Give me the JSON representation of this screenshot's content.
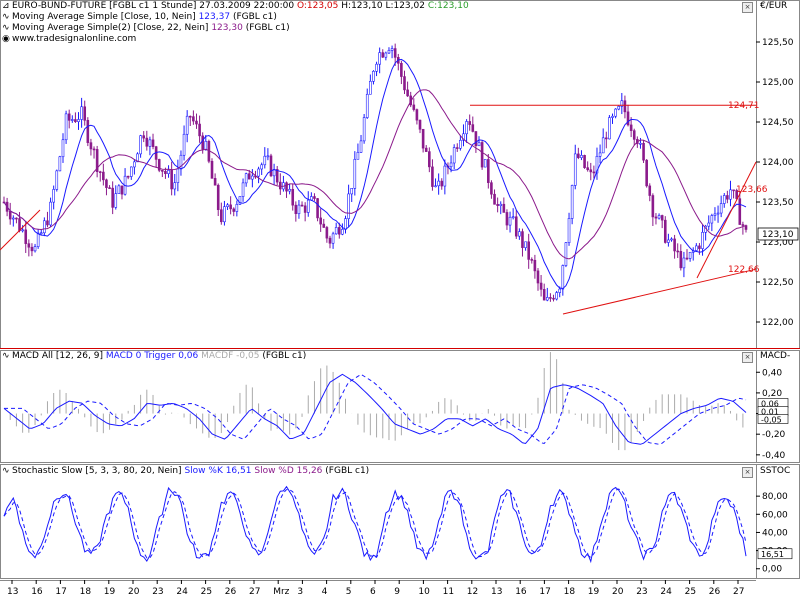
{
  "header": {
    "instrument_line": {
      "name": "EURO-BUND-FUTURE",
      "symbol": "[FGBL c1  1 Stunde]",
      "datetime": "27.03.2009 22:00:00",
      "open": "O:123,05",
      "high": "H:123,10",
      "low": "L:123,02",
      "close": "C:123,10"
    },
    "ma1_line": {
      "label": "Moving Average Simple [Close, 10, Nein]",
      "value": "123,37",
      "suffix": "(FGBL c1)"
    },
    "ma2_line": {
      "label": "Moving Average Simple(2) [Close, 22, Nein]",
      "value": "123,30",
      "suffix": "(FGBL c1)"
    },
    "watermark": "www.tradesignalonline.com"
  },
  "panels": {
    "price": {
      "axis_title": "€/EUR"
    },
    "macd": {
      "title_prefix": "MACD All [12, 26, 9]",
      "macd_lbl": "MACD 0",
      "trig_lbl": "Trigger 0,06",
      "macdf_lbl": "MACDF -0,05",
      "suffix": "(FGBL c1)",
      "axis_title": "MACD-"
    },
    "stoch": {
      "title_prefix": "Stochastic Slow [5, 3, 3, 80, 20, Nein]",
      "k_lbl": "Slow %K 16,51",
      "d_lbl": "Slow %D 15,26",
      "suffix": "(FGBL c1)",
      "axis_title": "SSTOC"
    }
  },
  "colors": {
    "ma10": "#1a1aff",
    "ma22": "#8b1a8b",
    "trendline": "#e01010",
    "candle_up": "#1a1aff",
    "candle_down": "#8b1a8b",
    "macd_hist": "#aaaaaa",
    "axis_bg": "#ffffff"
  },
  "chart_data": [
    {
      "type": "candlestick",
      "title": "EURO-BUND-FUTURE [FGBL c1  1 Stunde]",
      "y_ticks": [
        "125,50",
        "125,00",
        "124,50",
        "124,00",
        "123,50",
        "123,00",
        "122,50",
        "122,00"
      ],
      "ylim": [
        121.75,
        125.85
      ],
      "price_labels": [
        "124,71",
        "123,66",
        "123,10",
        "122,66"
      ],
      "x_tick_labels": [
        "13",
        "16",
        "17",
        "18",
        "19",
        "20",
        "23",
        "24",
        "25",
        "26",
        "27",
        "Mrz",
        "3",
        "4",
        "5",
        "6",
        "9",
        "10",
        "11",
        "12",
        "13",
        "16",
        "17",
        "18",
        "19",
        "20",
        "23",
        "24",
        "25",
        "26",
        "27"
      ],
      "close_path": [
        123.5,
        123.2,
        122.9,
        123.4,
        124.5,
        124.6,
        124.0,
        123.5,
        123.8,
        124.4,
        124.0,
        123.7,
        124.6,
        124.2,
        123.3,
        123.5,
        123.9,
        124.0,
        123.7,
        123.4,
        123.5,
        123.0,
        123.3,
        124.2,
        125.3,
        125.5,
        124.9,
        124.3,
        123.6,
        124.1,
        124.6,
        124.0,
        123.4,
        123.2,
        122.8,
        122.2,
        122.5,
        124.1,
        123.8,
        124.4,
        124.7,
        124.3,
        123.4,
        123.0,
        122.7,
        123.0,
        123.4,
        123.66,
        123.1
      ],
      "series": [
        {
          "name": "Moving Average Simple [Close, 10, Nein]",
          "last": 123.37
        },
        {
          "name": "Moving Average Simple(2) [Close, 22, Nein]",
          "last": 123.3
        }
      ]
    },
    {
      "type": "line",
      "title": "MACD All [12, 26, 9]",
      "y_ticks": [
        "0,40",
        "0,20",
        "0,00",
        "-0,20",
        "-0,40"
      ],
      "ylim": [
        -0.45,
        0.48
      ],
      "value_labels": [
        "0,06",
        "0,01",
        "-0,05"
      ],
      "macd": [
        0.05,
        -0.05,
        -0.15,
        -0.1,
        0.05,
        0.12,
        0.1,
        -0.02,
        -0.1,
        -0.12,
        -0.05,
        0.1,
        0.08,
        0.1,
        0.05,
        -0.05,
        -0.2,
        -0.25,
        -0.1,
        0.05,
        -0.05,
        -0.12,
        -0.25,
        -0.2,
        0.05,
        0.3,
        0.38,
        0.3,
        0.18,
        0.05,
        -0.1,
        -0.15,
        -0.2,
        -0.15,
        -0.05,
        -0.05,
        -0.12,
        -0.05,
        -0.15,
        -0.2,
        -0.3,
        -0.15,
        0.25,
        0.28,
        0.25,
        0.18,
        0.1,
        -0.12,
        -0.28,
        -0.3,
        -0.2,
        -0.1,
        0.0,
        0.05,
        0.08,
        0.15,
        0.12,
        0.01
      ],
      "series": [
        {
          "name": "MACD"
        },
        {
          "name": "Trigger"
        },
        {
          "name": "MACDF"
        }
      ]
    },
    {
      "type": "line",
      "title": "Stochastic Slow [5, 3, 3, 80, 20, Nein]",
      "y_ticks": [
        "80,00",
        "60,00",
        "40,00",
        "20,00",
        "0,00"
      ],
      "ylim": [
        -8,
        100
      ],
      "value_labels": [
        "16,51"
      ],
      "k": [
        60,
        80,
        30,
        10,
        40,
        80,
        85,
        50,
        15,
        20,
        60,
        85,
        70,
        20,
        10,
        50,
        90,
        80,
        30,
        10,
        20,
        70,
        85,
        60,
        20,
        15,
        60,
        90,
        85,
        40,
        10,
        30,
        80,
        85,
        50,
        15,
        10,
        60,
        85,
        70,
        25,
        10,
        40,
        85,
        80,
        30,
        10,
        20,
        75,
        85,
        50,
        15,
        20,
        70,
        85,
        60,
        20,
        10,
        55,
        90,
        80,
        40,
        15,
        20,
        70,
        85,
        55,
        20,
        15,
        65,
        80,
        60,
        16.5
      ],
      "series": [
        {
          "name": "Slow %K"
        },
        {
          "name": "Slow %D"
        }
      ]
    }
  ]
}
